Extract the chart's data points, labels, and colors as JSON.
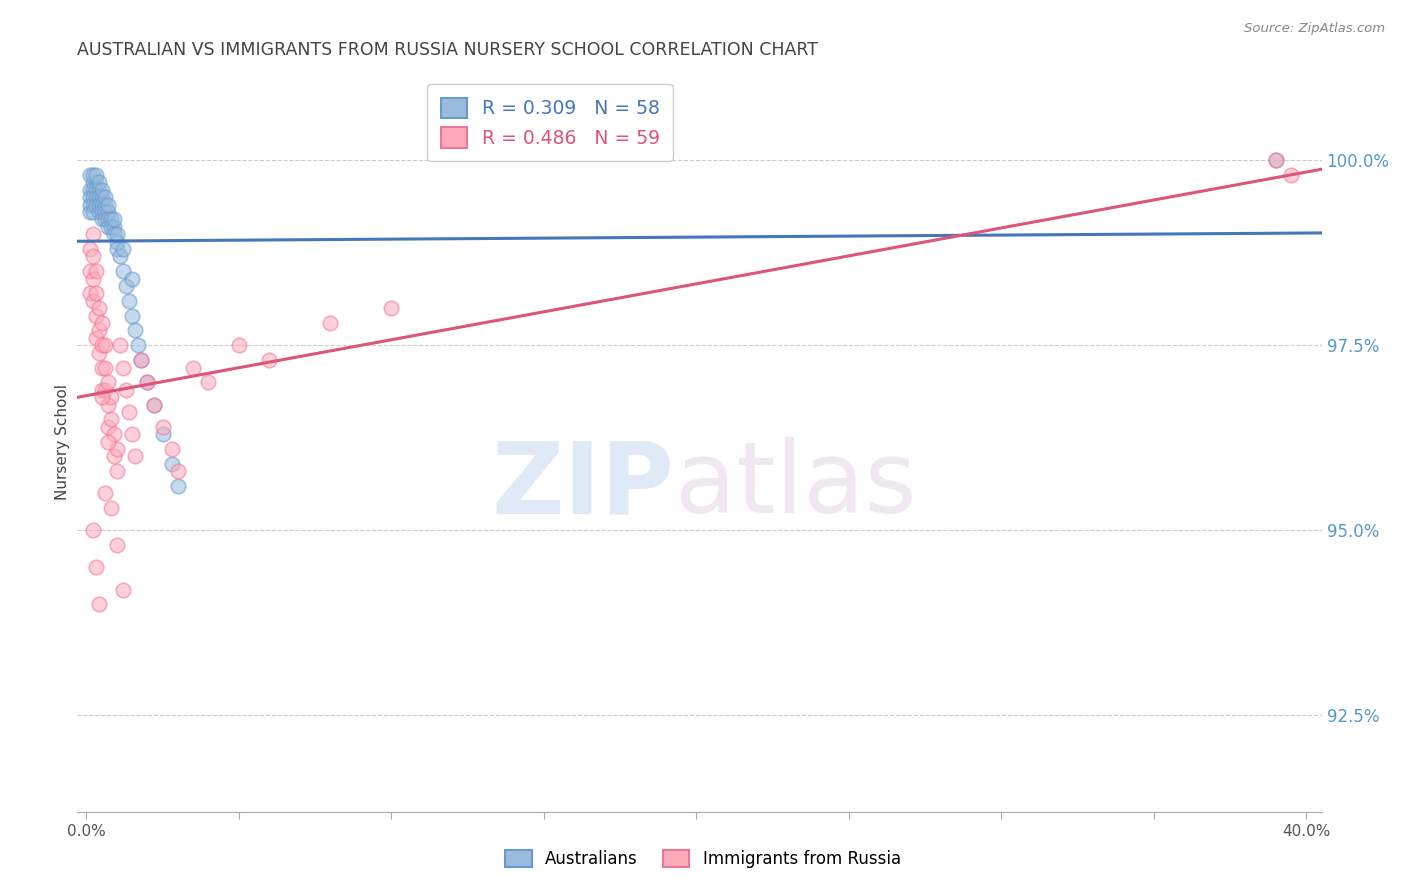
{
  "title": "AUSTRALIAN VS IMMIGRANTS FROM RUSSIA NURSERY SCHOOL CORRELATION CHART",
  "source": "Source: ZipAtlas.com",
  "ylabel": "Nursery School",
  "y_ticks": [
    92.5,
    95.0,
    97.5,
    100.0
  ],
  "y_tick_labels": [
    "92.5%",
    "95.0%",
    "97.5%",
    "100.0%"
  ],
  "xlim": [
    -0.003,
    0.405
  ],
  "ylim": [
    91.2,
    101.2
  ],
  "legend_blue_label": "Australians",
  "legend_pink_label": "Immigrants from Russia",
  "blue_R": 0.309,
  "blue_N": 58,
  "pink_R": 0.486,
  "pink_N": 59,
  "blue_color": "#99BBDD",
  "pink_color": "#FFAABB",
  "blue_edge_color": "#6699CC",
  "pink_edge_color": "#EE7799",
  "blue_line_color": "#4477BB",
  "pink_line_color": "#DD5577",
  "background_color": "#FFFFFF",
  "grid_color": "#CCCCCC",
  "title_color": "#444444",
  "axis_label_color": "#444444",
  "tick_label_color_y": "#5599CC",
  "source_color": "#888888",
  "blue_x": [
    0.001,
    0.001,
    0.001,
    0.001,
    0.002,
    0.002,
    0.002,
    0.002,
    0.002,
    0.003,
    0.003,
    0.003,
    0.003,
    0.004,
    0.004,
    0.004,
    0.004,
    0.005,
    0.005,
    0.005,
    0.005,
    0.006,
    0.006,
    0.006,
    0.007,
    0.007,
    0.007,
    0.008,
    0.008,
    0.009,
    0.009,
    0.01,
    0.01,
    0.011,
    0.012,
    0.013,
    0.014,
    0.015,
    0.016,
    0.017,
    0.018,
    0.02,
    0.022,
    0.025,
    0.028,
    0.03,
    0.001,
    0.002,
    0.003,
    0.004,
    0.005,
    0.006,
    0.007,
    0.009,
    0.01,
    0.012,
    0.015,
    0.39
  ],
  "blue_y": [
    99.6,
    99.5,
    99.4,
    99.3,
    99.7,
    99.6,
    99.5,
    99.4,
    99.3,
    99.7,
    99.6,
    99.5,
    99.4,
    99.6,
    99.5,
    99.4,
    99.3,
    99.5,
    99.4,
    99.3,
    99.2,
    99.4,
    99.3,
    99.2,
    99.3,
    99.2,
    99.1,
    99.2,
    99.1,
    99.1,
    99.0,
    98.9,
    98.8,
    98.7,
    98.5,
    98.3,
    98.1,
    97.9,
    97.7,
    97.5,
    97.3,
    97.0,
    96.7,
    96.3,
    95.9,
    95.6,
    99.8,
    99.8,
    99.8,
    99.7,
    99.6,
    99.5,
    99.4,
    99.2,
    99.0,
    98.8,
    98.4,
    100.0
  ],
  "pink_x": [
    0.001,
    0.001,
    0.001,
    0.002,
    0.002,
    0.002,
    0.002,
    0.003,
    0.003,
    0.003,
    0.003,
    0.004,
    0.004,
    0.004,
    0.005,
    0.005,
    0.005,
    0.005,
    0.006,
    0.006,
    0.006,
    0.007,
    0.007,
    0.007,
    0.008,
    0.008,
    0.009,
    0.009,
    0.01,
    0.01,
    0.011,
    0.012,
    0.013,
    0.014,
    0.015,
    0.016,
    0.018,
    0.02,
    0.022,
    0.025,
    0.028,
    0.03,
    0.035,
    0.04,
    0.05,
    0.06,
    0.08,
    0.1,
    0.002,
    0.003,
    0.004,
    0.005,
    0.006,
    0.007,
    0.008,
    0.01,
    0.012,
    0.39,
    0.395
  ],
  "pink_y": [
    98.8,
    98.5,
    98.2,
    99.0,
    98.7,
    98.4,
    98.1,
    98.5,
    98.2,
    97.9,
    97.6,
    98.0,
    97.7,
    97.4,
    97.8,
    97.5,
    97.2,
    96.9,
    97.5,
    97.2,
    96.9,
    97.0,
    96.7,
    96.4,
    96.8,
    96.5,
    96.3,
    96.0,
    96.1,
    95.8,
    97.5,
    97.2,
    96.9,
    96.6,
    96.3,
    96.0,
    97.3,
    97.0,
    96.7,
    96.4,
    96.1,
    95.8,
    97.2,
    97.0,
    97.5,
    97.3,
    97.8,
    98.0,
    95.0,
    94.5,
    94.0,
    96.8,
    95.5,
    96.2,
    95.3,
    94.8,
    94.2,
    100.0,
    99.8
  ],
  "marker_size": 110,
  "marker_alpha": 0.55,
  "line_width": 2.2
}
